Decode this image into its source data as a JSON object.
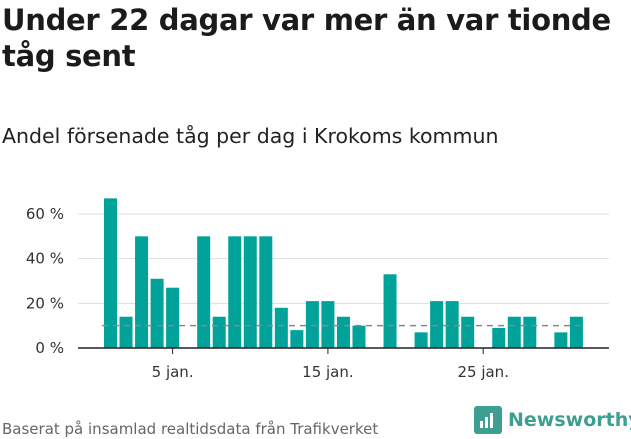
{
  "title": "Under 22 dagar var mer än var tionde tåg sent",
  "subtitle": "Andel försenade tåg per dag i Krokoms kommun",
  "footer": "Baserat på insamlad realtidsdata från Trafikverket",
  "brand": {
    "name": "Newsworthy",
    "icon": "newsworthy-logo-icon"
  },
  "colors": {
    "bar": "#00a299",
    "grid": "#dedede",
    "axis": "#222222",
    "reference_line": "#888888"
  },
  "chart_data": {
    "type": "bar",
    "title": "Under 22 dagar var mer än var tionde tåg sent",
    "subtitle": "Andel försenade tåg per dag i Krokoms kommun",
    "xlabel": "",
    "ylabel": "",
    "unit": "%",
    "x": [
      1,
      2,
      3,
      4,
      5,
      6,
      7,
      8,
      9,
      10,
      11,
      12,
      13,
      14,
      15,
      16,
      17,
      18,
      19,
      20,
      21,
      22,
      23,
      24,
      25,
      26,
      27,
      28,
      29,
      30,
      31
    ],
    "values": [
      67,
      14,
      50,
      31,
      27,
      0,
      50,
      14,
      50,
      50,
      50,
      18,
      8,
      21,
      21,
      14,
      10,
      0,
      33,
      0,
      7,
      21,
      21,
      14,
      0,
      9,
      14,
      14,
      0,
      7,
      14
    ],
    "xticks": [
      5,
      15,
      25
    ],
    "xtick_labels": [
      "5 jan.",
      "15 jan.",
      "25 jan."
    ],
    "yticks": [
      0,
      20,
      40,
      60
    ],
    "ytick_labels": [
      "0 %",
      "20 %",
      "40 %",
      "60 %"
    ],
    "ylim": [
      0,
      70
    ],
    "reference_line": {
      "value": 10,
      "style": "dashed"
    },
    "grid": true
  }
}
